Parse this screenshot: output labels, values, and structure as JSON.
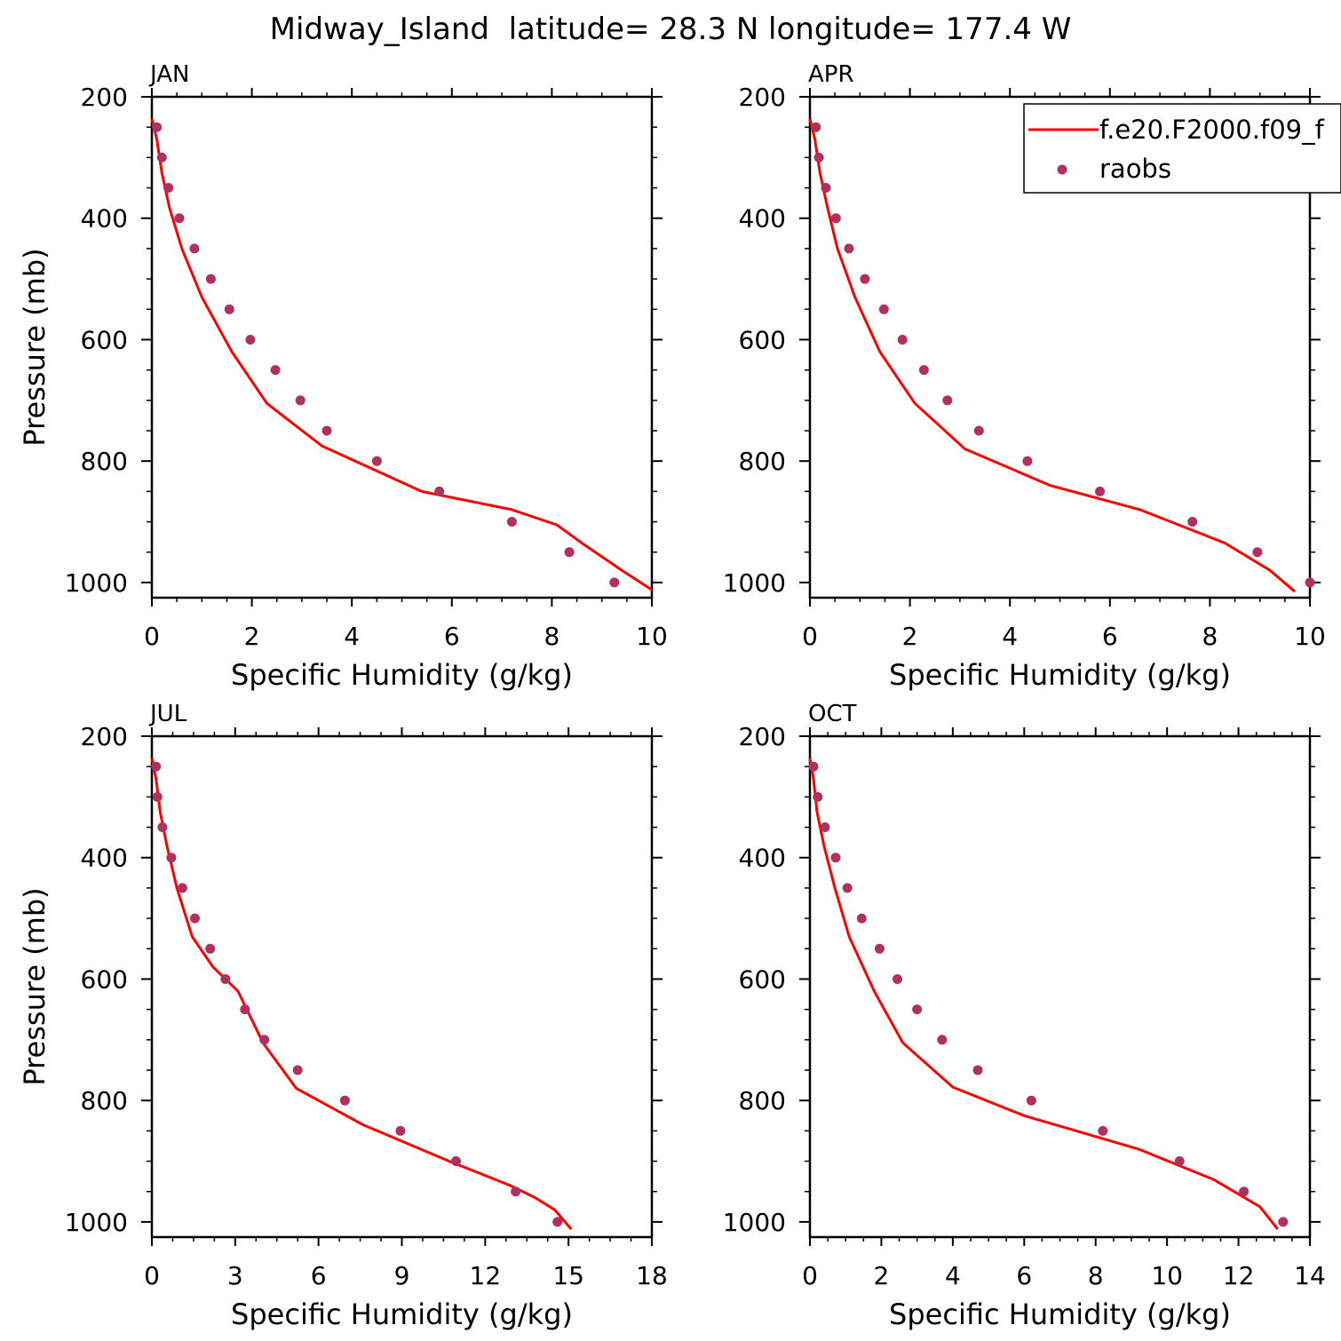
{
  "title": "Midway_Island  latitude= 28.3 N longitude= 177.4 W",
  "legend": {
    "model_label": "f.e20.F2000.f09_f",
    "obs_label": "raobs"
  },
  "colors": {
    "model": "#ff0000",
    "obs": "#b03060",
    "axis": "#000000"
  },
  "chart_data": [
    {
      "type": "line",
      "panel_label": "JAN",
      "xlabel": "Specific Humidity (g/kg)",
      "ylabel": "Pressure (mb)",
      "xlim": [
        0,
        10
      ],
      "xticks": [
        0,
        2,
        4,
        6,
        8,
        10
      ],
      "ylim": [
        200,
        1025
      ],
      "yticks": [
        200,
        400,
        600,
        800,
        1000
      ],
      "y_inverted": true,
      "series": [
        {
          "name": "f.e20.F2000.f09_f",
          "style": "line",
          "x": [
            0.0,
            0.1,
            0.2,
            0.35,
            0.6,
            1.0,
            1.6,
            2.3,
            3.4,
            5.4,
            7.2,
            8.1,
            8.6,
            9.4,
            10.0
          ],
          "y": [
            236,
            270,
            325,
            382,
            450,
            530,
            620,
            705,
            775,
            850,
            880,
            905,
            935,
            980,
            1012
          ]
        },
        {
          "name": "raobs",
          "style": "points",
          "x": [
            0.1,
            0.2,
            0.33,
            0.55,
            0.85,
            1.18,
            1.55,
            1.97,
            2.47,
            2.97,
            3.5,
            4.5,
            5.75,
            7.2,
            8.35,
            9.25
          ],
          "y": [
            250,
            300,
            350,
            400,
            450,
            500,
            550,
            600,
            650,
            700,
            750,
            800,
            850,
            900,
            950,
            1000
          ]
        }
      ]
    },
    {
      "type": "line",
      "panel_label": "APR",
      "xlabel": "Specific Humidity (g/kg)",
      "ylabel": "",
      "xlim": [
        0,
        10
      ],
      "xticks": [
        0,
        2,
        4,
        6,
        8,
        10
      ],
      "ylim": [
        200,
        1025
      ],
      "yticks": [
        200,
        400,
        600,
        800,
        1000
      ],
      "y_inverted": true,
      "show_legend": true,
      "legend_position": "top-right",
      "series": [
        {
          "name": "f.e20.F2000.f09_f",
          "style": "line",
          "x": [
            0.0,
            0.1,
            0.2,
            0.35,
            0.55,
            0.9,
            1.4,
            2.1,
            3.1,
            4.8,
            6.6,
            8.3,
            9.2,
            9.7
          ],
          "y": [
            236,
            270,
            325,
            382,
            450,
            530,
            620,
            705,
            780,
            840,
            880,
            935,
            980,
            1015
          ]
        },
        {
          "name": "raobs",
          "style": "points",
          "x": [
            0.12,
            0.18,
            0.32,
            0.52,
            0.78,
            1.1,
            1.48,
            1.85,
            2.28,
            2.75,
            3.38,
            4.35,
            5.8,
            7.65,
            8.95,
            10.0
          ],
          "y": [
            250,
            300,
            350,
            400,
            450,
            500,
            550,
            600,
            650,
            700,
            750,
            800,
            850,
            900,
            950,
            1000
          ]
        }
      ]
    },
    {
      "type": "line",
      "panel_label": "JUL",
      "xlabel": "Specific Humidity (g/kg)",
      "ylabel": "Pressure (mb)",
      "xlim": [
        0,
        18
      ],
      "xticks": [
        0,
        3,
        6,
        9,
        12,
        15,
        18
      ],
      "ylim": [
        200,
        1025
      ],
      "yticks": [
        200,
        400,
        600,
        800,
        1000
      ],
      "y_inverted": true,
      "series": [
        {
          "name": "f.e20.F2000.f09_f",
          "style": "line",
          "x": [
            0.0,
            0.15,
            0.3,
            0.55,
            0.9,
            1.45,
            2.2,
            3.1,
            4.0,
            5.2,
            7.6,
            10.7,
            12.9,
            13.8,
            14.5,
            15.1
          ],
          "y": [
            236,
            270,
            325,
            382,
            450,
            530,
            580,
            620,
            705,
            780,
            840,
            900,
            940,
            960,
            980,
            1012
          ]
        },
        {
          "name": "raobs",
          "style": "points",
          "x": [
            0.15,
            0.2,
            0.38,
            0.7,
            1.1,
            1.55,
            2.1,
            2.65,
            3.35,
            4.05,
            5.25,
            6.95,
            8.95,
            10.95,
            13.1,
            14.6
          ],
          "y": [
            250,
            300,
            350,
            400,
            450,
            500,
            550,
            600,
            650,
            700,
            750,
            800,
            850,
            900,
            950,
            1000
          ]
        }
      ]
    },
    {
      "type": "line",
      "panel_label": "OCT",
      "xlabel": "Specific Humidity (g/kg)",
      "ylabel": "",
      "xlim": [
        0,
        14
      ],
      "xticks": [
        0,
        2,
        4,
        6,
        8,
        10,
        12,
        14
      ],
      "ylim": [
        200,
        1025
      ],
      "yticks": [
        200,
        400,
        600,
        800,
        1000
      ],
      "y_inverted": true,
      "series": [
        {
          "name": "f.e20.F2000.f09_f",
          "style": "line",
          "x": [
            0.0,
            0.1,
            0.2,
            0.4,
            0.7,
            1.1,
            1.8,
            2.6,
            4.0,
            6.0,
            9.2,
            11.3,
            12.6,
            13.1
          ],
          "y": [
            236,
            270,
            325,
            382,
            450,
            530,
            620,
            705,
            778,
            825,
            880,
            930,
            975,
            1012
          ]
        },
        {
          "name": "raobs",
          "style": "points",
          "x": [
            0.1,
            0.22,
            0.42,
            0.72,
            1.05,
            1.45,
            1.95,
            2.45,
            3.0,
            3.7,
            4.7,
            6.2,
            8.2,
            10.35,
            12.15,
            13.25
          ],
          "y": [
            250,
            300,
            350,
            400,
            450,
            500,
            550,
            600,
            650,
            700,
            750,
            800,
            850,
            900,
            950,
            1000
          ]
        }
      ]
    }
  ]
}
